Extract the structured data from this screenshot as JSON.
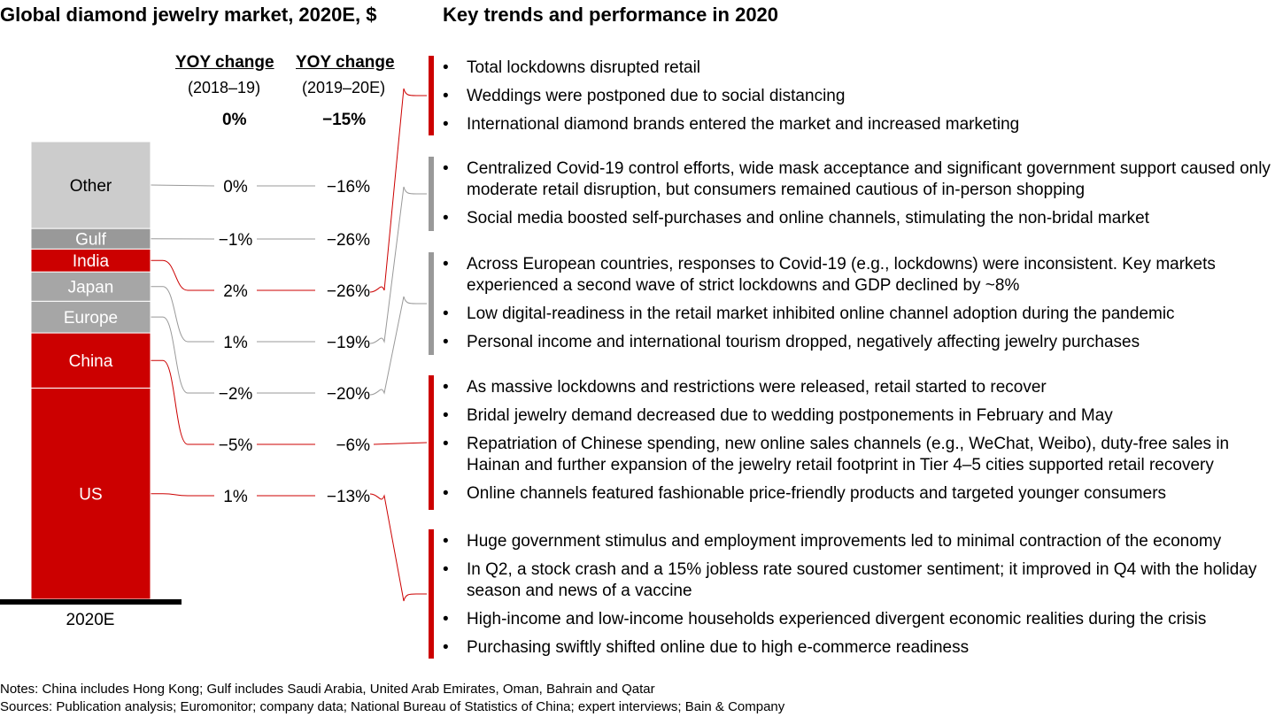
{
  "left_title": "Global diamond jewelry market, 2020E, $",
  "right_title": "Key trends and performance in 2020",
  "columns": {
    "col1": {
      "heading": "YOY change",
      "period": "(2018–19)",
      "total": "0%"
    },
    "col2": {
      "heading": "YOY change",
      "period": "(2019–20E)",
      "total": "−15%"
    }
  },
  "chart_data": {
    "type": "bar",
    "stacked": true,
    "categories": [
      "2020E"
    ],
    "segments": [
      {
        "name": "US",
        "share": 0.36,
        "color": "#cc0000",
        "yoy_2018_19": "1%",
        "yoy_2019_20": "−13%"
      },
      {
        "name": "China",
        "share": 0.094,
        "color": "#cc0000",
        "yoy_2018_19": "−5%",
        "yoy_2019_20": "−6%"
      },
      {
        "name": "Europe",
        "share": 0.054,
        "color": "#a6a6a6",
        "yoy_2018_19": "−2%",
        "yoy_2019_20": "−20%"
      },
      {
        "name": "Japan",
        "share": 0.05,
        "color": "#a6a6a6",
        "yoy_2018_19": "1%",
        "yoy_2019_20": "−19%"
      },
      {
        "name": "India",
        "share": 0.039,
        "color": "#cc0000",
        "yoy_2018_19": "2%",
        "yoy_2019_20": "−26%"
      },
      {
        "name": "Gulf",
        "share": 0.035,
        "color": "#999999",
        "yoy_2018_19": "−1%",
        "yoy_2019_20": "−26%"
      },
      {
        "name": "Other",
        "share": 0.148,
        "color": "#cccccc",
        "yoy_2018_19": "0%",
        "yoy_2019_20": "−16%"
      }
    ]
  },
  "trend_groups": [
    {
      "segment": "India",
      "color": "#cc0000",
      "bullets": [
        "Total lockdowns disrupted retail",
        "Weddings were postponed due to social distancing",
        "International diamond brands entered the market and increased marketing"
      ]
    },
    {
      "segment": "Japan",
      "color": "#999999",
      "bullets": [
        "Centralized Covid-19 control efforts, wide mask acceptance and significant government support caused only moderate retail disruption, but consumers remained cautious of in-person shopping",
        "Social media boosted self-purchases and online channels, stimulating the non-bridal market"
      ]
    },
    {
      "segment": "Europe",
      "color": "#999999",
      "bullets": [
        "Across European countries, responses to Covid-19 (e.g., lockdowns) were inconsistent. Key markets experienced a second wave of strict lockdowns and GDP declined by ~8%",
        "Low digital-readiness in the retail market inhibited online channel adoption during the pandemic",
        "Personal income and international tourism dropped, negatively affecting jewelry purchases"
      ]
    },
    {
      "segment": "China",
      "color": "#cc0000",
      "bullets": [
        "As massive lockdowns and restrictions were released, retail started to recover",
        "Bridal jewelry demand decreased due to wedding postponements in February and May",
        "Repatriation of Chinese spending, new online sales channels (e.g., WeChat, Weibo), duty-free sales in Hainan and further expansion of the jewelry retail footprint in Tier 4–5 cities supported retail recovery",
        "Online channels featured fashionable price-friendly products and targeted younger consumers"
      ]
    },
    {
      "segment": "US",
      "color": "#cc0000",
      "bullets": [
        "Huge government stimulus and employment improvements led to minimal contraction of the economy",
        "In Q2, a stock crash and a 15% jobless rate soured customer sentiment; it improved in Q4 with the holiday season and news of a vaccine",
        "High-income and low-income households experienced divergent economic realities during the crisis",
        "Purchasing swiftly shifted online due to high e-commerce readiness"
      ]
    }
  ],
  "notes": "Notes: China includes Hong Kong; Gulf includes Saudi Arabia, United Arab Emirates, Oman, Bahrain and Qatar",
  "sources": "Sources: Publication analysis; Euromonitor; company data; National Bureau of Statistics of China; expert interviews; Bain & Company"
}
